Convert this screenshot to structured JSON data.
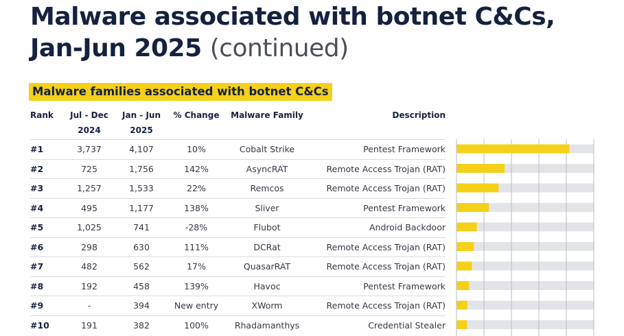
{
  "title": {
    "main": "Malware associated with botnet C&Cs,",
    "line2_bold": "Jan-Jun 2025",
    "line2_light": "(continued)"
  },
  "subtitle": "Malware families associated with botnet C&Cs",
  "headers": {
    "rank": "Rank",
    "jul_dec_line1": "Jul - Dec",
    "jul_dec_line2": "2024",
    "jan_jun_line1": "Jan - Jun",
    "jan_jun_line2": "2025",
    "change": "% Change",
    "family": "Malware Family",
    "description": "Description"
  },
  "rows": [
    {
      "rank": "#1",
      "jul_dec": "3,737",
      "jan_jun": "4,107",
      "change": "10%",
      "family": "Cobalt Strike",
      "description": "Pentest Framework"
    },
    {
      "rank": "#2",
      "jul_dec": "725",
      "jan_jun": "1,756",
      "change": "142%",
      "family": "AsyncRAT",
      "description": "Remote Access Trojan (RAT)"
    },
    {
      "rank": "#3",
      "jul_dec": "1,257",
      "jan_jun": "1,533",
      "change": "22%",
      "family": "Remcos",
      "description": "Remote Access Trojan (RAT)"
    },
    {
      "rank": "#4",
      "jul_dec": "495",
      "jan_jun": "1,177",
      "change": "138%",
      "family": "Sliver",
      "description": "Pentest Framework"
    },
    {
      "rank": "#5",
      "jul_dec": "1,025",
      "jan_jun": "741",
      "change": "-28%",
      "family": "Flubot",
      "description": "Android Backdoor"
    },
    {
      "rank": "#6",
      "jul_dec": "298",
      "jan_jun": "630",
      "change": "111%",
      "family": "DCRat",
      "description": "Remote Access Trojan (RAT)"
    },
    {
      "rank": "#7",
      "jul_dec": "482",
      "jan_jun": "562",
      "change": "17%",
      "family": "QuasarRAT",
      "description": "Remote Access Trojan (RAT)"
    },
    {
      "rank": "#8",
      "jul_dec": "192",
      "jan_jun": "458",
      "change": "139%",
      "family": "Havoc",
      "description": "Pentest Framework"
    },
    {
      "rank": "#9",
      "jul_dec": "-",
      "jan_jun": "394",
      "change": "New entry",
      "family": "XWorm",
      "description": "Remote Access Trojan (RAT)"
    },
    {
      "rank": "#10",
      "jul_dec": "191",
      "jan_jun": "382",
      "change": "100%",
      "family": "Rhadamanthys",
      "description": "Credential Stealer"
    }
  ],
  "chart_data": {
    "type": "bar",
    "orientation": "horizontal",
    "categories": [
      "Cobalt Strike",
      "AsyncRAT",
      "Remcos",
      "Sliver",
      "Flubot",
      "DCRat",
      "QuasarRAT",
      "Havoc",
      "XWorm",
      "Rhadamanthys"
    ],
    "values": [
      4107,
      1756,
      1533,
      1177,
      741,
      630,
      562,
      458,
      394,
      382
    ],
    "xlim": [
      0,
      5000
    ],
    "grid": true,
    "colors": {
      "bar": "#f5d018",
      "track": "#e3e4e8",
      "grid": "#b9bcc4"
    }
  }
}
